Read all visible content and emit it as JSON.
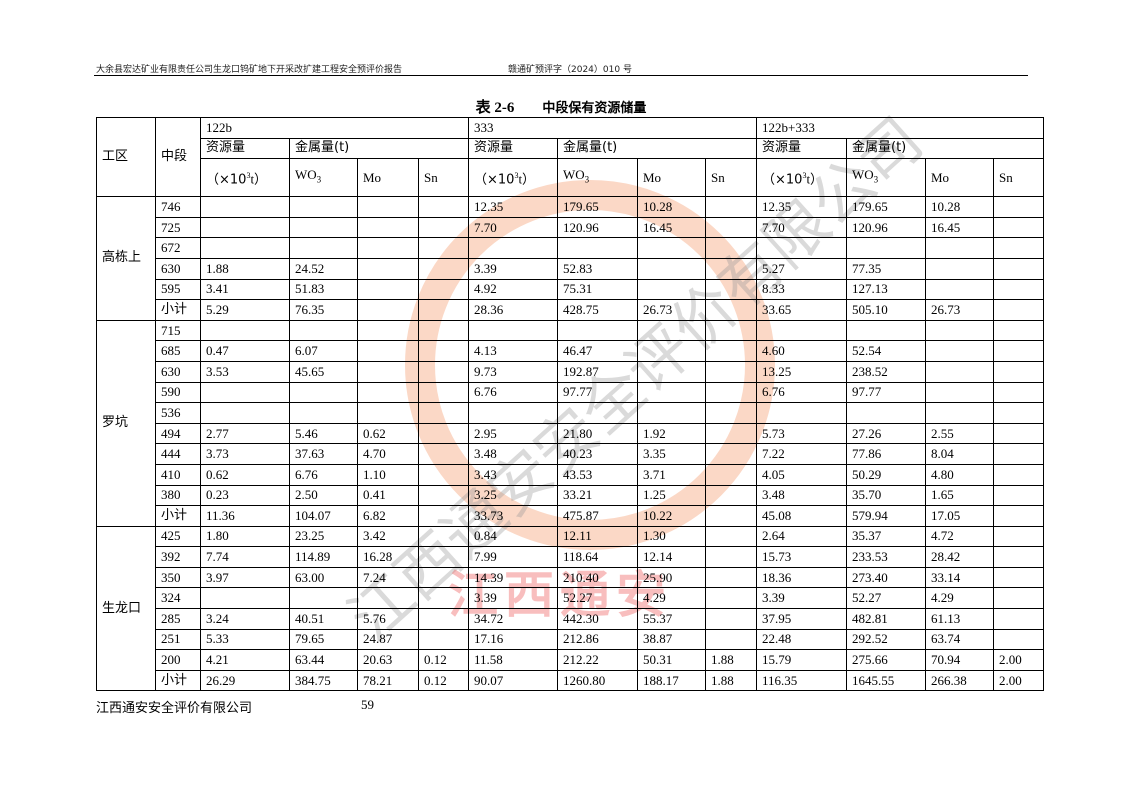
{
  "header": {
    "left": "大余县宏达矿业有限责任公司生龙口钨矿地下开采改扩建工程安全预评价报告",
    "right": "赣通矿预评字（2024）010 号"
  },
  "title": {
    "number": "表 2-6",
    "text": "中段保有资源储量"
  },
  "table": {
    "col_zone": "工区",
    "col_level": "中段",
    "groups": [
      "122b",
      "333",
      "122b+333"
    ],
    "resource_label": "资源量",
    "metal_label": "金属量(t)",
    "unit_prefix": "（×10",
    "unit_exp": "3",
    "unit_suffix": "t）",
    "wo_base": "WO",
    "wo_sub": "3",
    "mo": "Mo",
    "sn": "Sn",
    "zones": [
      {
        "name": "高栋上",
        "rows": [
          [
            "746",
            "",
            "",
            "",
            "",
            "12.35",
            "179.65",
            "10.28",
            "",
            "12.35",
            "179.65",
            "10.28",
            ""
          ],
          [
            "725",
            "",
            "",
            "",
            "",
            "7.70",
            "120.96",
            "16.45",
            "",
            "7.70",
            "120.96",
            "16.45",
            ""
          ],
          [
            "672",
            "",
            "",
            "",
            "",
            "",
            "",
            "",
            "",
            "",
            "",
            "",
            ""
          ],
          [
            "630",
            "1.88",
            "24.52",
            "",
            "",
            "3.39",
            "52.83",
            "",
            "",
            "5.27",
            "77.35",
            "",
            ""
          ],
          [
            "595",
            "3.41",
            "51.83",
            "",
            "",
            "4.92",
            "75.31",
            "",
            "",
            "8.33",
            "127.13",
            "",
            ""
          ],
          [
            "小计",
            "5.29",
            "76.35",
            "",
            "",
            "28.36",
            "428.75",
            "26.73",
            "",
            "33.65",
            "505.10",
            "26.73",
            ""
          ]
        ]
      },
      {
        "name": "罗坑",
        "rows": [
          [
            "715",
            "",
            "",
            "",
            "",
            "",
            "",
            "",
            "",
            "",
            "",
            "",
            ""
          ],
          [
            "685",
            "0.47",
            "6.07",
            "",
            "",
            "4.13",
            "46.47",
            "",
            "",
            "4.60",
            "52.54",
            "",
            ""
          ],
          [
            "630",
            "3.53",
            "45.65",
            "",
            "",
            "9.73",
            "192.87",
            "",
            "",
            "13.25",
            "238.52",
            "",
            ""
          ],
          [
            "590",
            "",
            "",
            "",
            "",
            "6.76",
            "97.77",
            "",
            "",
            "6.76",
            "97.77",
            "",
            ""
          ],
          [
            "536",
            "",
            "",
            "",
            "",
            "",
            "",
            "",
            "",
            "",
            "",
            "",
            ""
          ],
          [
            "494",
            "2.77",
            "5.46",
            "0.62",
            "",
            "2.95",
            "21.80",
            "1.92",
            "",
            "5.73",
            "27.26",
            "2.55",
            ""
          ],
          [
            "444",
            "3.73",
            "37.63",
            "4.70",
            "",
            "3.48",
            "40.23",
            "3.35",
            "",
            "7.22",
            "77.86",
            "8.04",
            ""
          ],
          [
            "410",
            "0.62",
            "6.76",
            "1.10",
            "",
            "3.43",
            "43.53",
            "3.71",
            "",
            "4.05",
            "50.29",
            "4.80",
            ""
          ],
          [
            "380",
            "0.23",
            "2.50",
            "0.41",
            "",
            "3.25",
            "33.21",
            "1.25",
            "",
            "3.48",
            "35.70",
            "1.65",
            ""
          ],
          [
            "小计",
            "11.36",
            "104.07",
            "6.82",
            "",
            "33.73",
            "475.87",
            "10.22",
            "",
            "45.08",
            "579.94",
            "17.05",
            ""
          ]
        ]
      },
      {
        "name": "生龙口",
        "rows": [
          [
            "425",
            "1.80",
            "23.25",
            "3.42",
            "",
            "0.84",
            "12.11",
            "1.30",
            "",
            "2.64",
            "35.37",
            "4.72",
            ""
          ],
          [
            "392",
            "7.74",
            "114.89",
            "16.28",
            "",
            "7.99",
            "118.64",
            "12.14",
            "",
            "15.73",
            "233.53",
            "28.42",
            ""
          ],
          [
            "350",
            "3.97",
            "63.00",
            "7.24",
            "",
            "14.39",
            "210.40",
            "25.90",
            "",
            "18.36",
            "273.40",
            "33.14",
            ""
          ],
          [
            "324",
            "",
            "",
            "",
            "",
            "3.39",
            "52.27",
            "4.29",
            "",
            "3.39",
            "52.27",
            "4.29",
            ""
          ],
          [
            "285",
            "3.24",
            "40.51",
            "5.76",
            "",
            "34.72",
            "442.30",
            "55.37",
            "",
            "37.95",
            "482.81",
            "61.13",
            ""
          ],
          [
            "251",
            "5.33",
            "79.65",
            "24.87",
            "",
            "17.16",
            "212.86",
            "38.87",
            "",
            "22.48",
            "292.52",
            "63.74",
            ""
          ],
          [
            "200",
            "4.21",
            "63.44",
            "20.63",
            "0.12",
            "11.58",
            "212.22",
            "50.31",
            "1.88",
            "15.79",
            "275.66",
            "70.94",
            "2.00"
          ],
          [
            "小计",
            "26.29",
            "384.75",
            "78.21",
            "0.12",
            "90.07",
            "1260.80",
            "188.17",
            "1.88",
            "116.35",
            "1645.55",
            "266.38",
            "2.00"
          ]
        ]
      }
    ]
  },
  "watermark": {
    "company": "江西通安安全评价有限公司",
    "short": "江西通安",
    "colors": {
      "circle": "#f8bea0",
      "text": "#f06e6e"
    }
  },
  "footer": {
    "company": "江西通安安全评价有限公司",
    "page": "59"
  }
}
